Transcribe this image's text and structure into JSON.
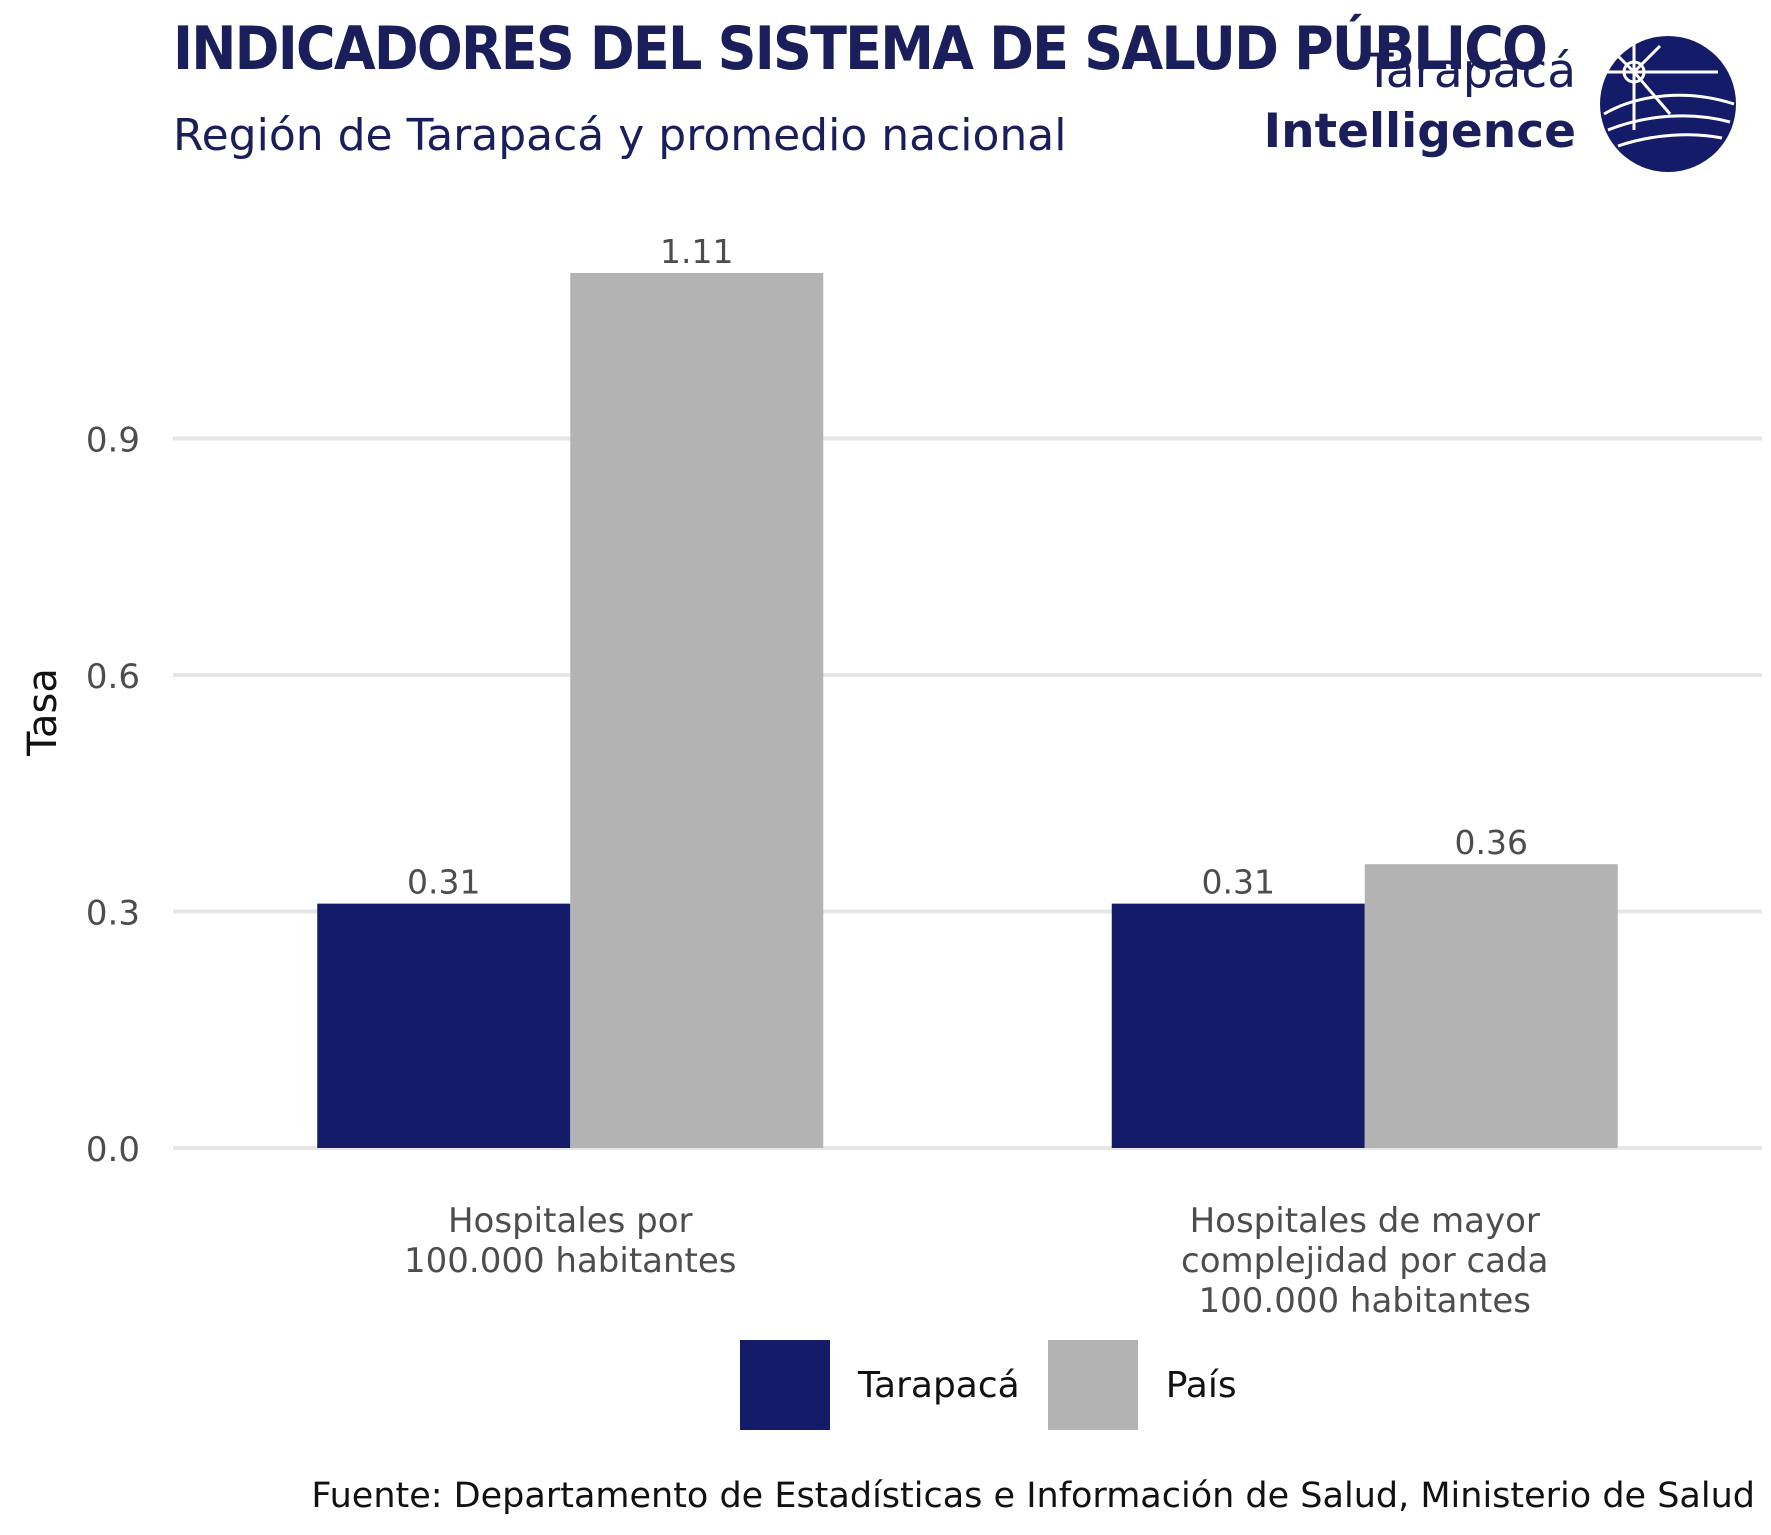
{
  "header": {
    "title": "INDICADORES DEL SISTEMA DE SALUD PÚBLICO",
    "subtitle": "Región de Tarapacá y promedio nacional"
  },
  "brand": {
    "line1": "Tarapacá",
    "line2": "Intelligence",
    "logo_icon": "globe-compass-icon"
  },
  "chart_data": {
    "type": "bar",
    "categories": [
      [
        "Hospitales por",
        "100.000 habitantes"
      ],
      [
        "Hospitales de mayor",
        "complejidad por cada",
        "100.000 habitantes"
      ]
    ],
    "series": [
      {
        "name": "Tarapacá",
        "values": [
          0.31,
          0.31
        ],
        "labels": [
          "0.31",
          "0.31"
        ],
        "color": "#141c69"
      },
      {
        "name": "País",
        "values": [
          1.11,
          0.36
        ],
        "labels": [
          "1.11",
          "0.36"
        ],
        "color": "#b3b3b3"
      }
    ],
    "xlabel": "",
    "ylabel": "Tasa",
    "ylim": [
      0,
      1.11
    ],
    "yticks": [
      0.0,
      0.3,
      0.6,
      0.9
    ],
    "ytick_labels": [
      "0.0",
      "0.3",
      "0.6",
      "0.9"
    ],
    "grid": true,
    "legend_position": "bottom"
  },
  "footer": {
    "source": "Fuente: Departamento de Estadísticas e Información de Salud, Ministerio de Salud"
  },
  "colors": {
    "brand": "#1a1f5c",
    "grid": "#e6e6e6",
    "axis_text": "#4d4d4d"
  }
}
